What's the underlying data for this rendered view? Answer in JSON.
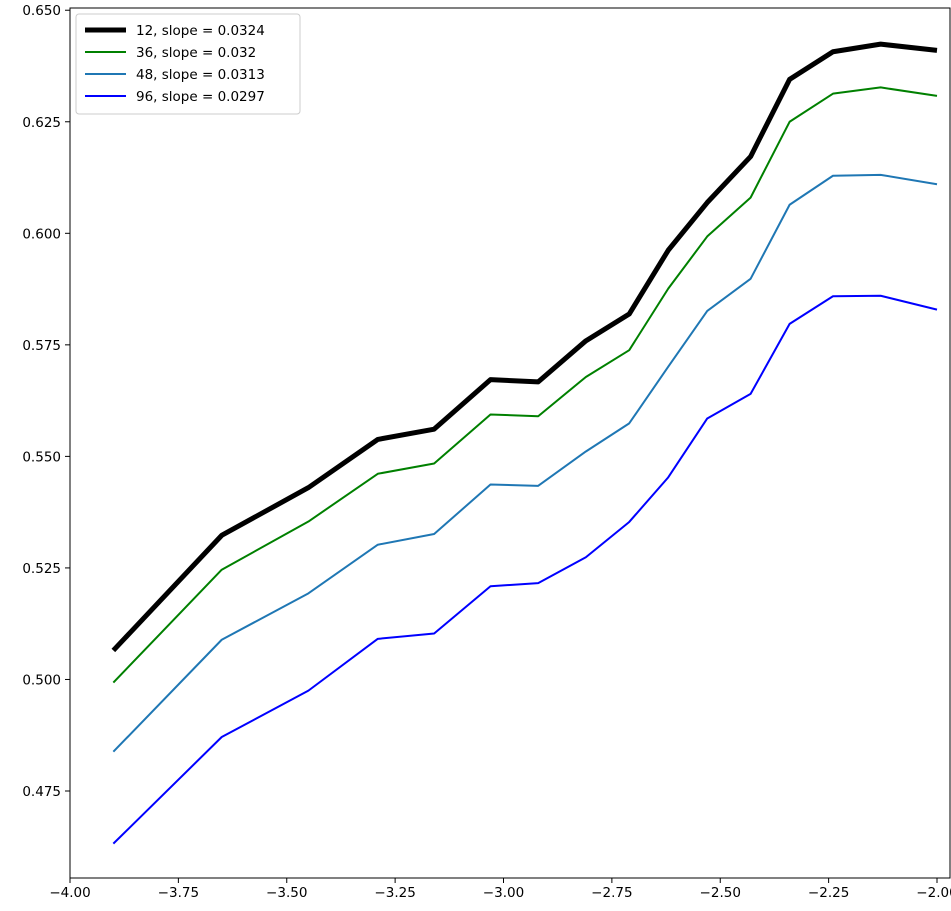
{
  "chart_data": {
    "type": "line",
    "title": "",
    "xlabel": "",
    "ylabel": "",
    "xlim": [
      -4.0,
      -1.97
    ],
    "ylim": [
      0.4555,
      0.6505
    ],
    "grid": false,
    "legend_position": "top-left",
    "x_ticks": [
      -4.0,
      -3.75,
      -3.5,
      -3.25,
      -3.0,
      -2.75,
      -2.5,
      -2.25,
      -2.0
    ],
    "x_tick_labels": [
      "−4.00",
      "−3.75",
      "−3.50",
      "−3.25",
      "−3.00",
      "−2.75",
      "−2.50",
      "−2.25",
      "−2.00"
    ],
    "y_ticks": [
      0.475,
      0.5,
      0.525,
      0.55,
      0.575,
      0.6,
      0.625,
      0.65
    ],
    "y_tick_labels": [
      "0.475",
      "0.500",
      "0.525",
      "0.550",
      "0.575",
      "0.600",
      "0.625",
      "0.650"
    ],
    "x": [
      -3.9,
      -3.65,
      -3.45,
      -3.29,
      -3.16,
      -3.03,
      -2.92,
      -2.81,
      -2.71,
      -2.62,
      -2.53,
      -2.43,
      -2.34,
      -2.24,
      -2.13,
      -2.0
    ],
    "series": [
      {
        "name": "12, slope = 0.0324",
        "color": "#000000",
        "width": 5,
        "values": [
          0.5065,
          0.5323,
          0.543,
          0.5538,
          0.5561,
          0.5672,
          0.5667,
          0.5759,
          0.5819,
          0.5962,
          0.6069,
          0.6172,
          0.6345,
          0.6407,
          0.6424,
          0.641
        ]
      },
      {
        "name": "36, slope = 0.032",
        "color": "#008000",
        "width": 2,
        "values": [
          0.4993,
          0.5246,
          0.5354,
          0.5461,
          0.5484,
          0.5594,
          0.559,
          0.5678,
          0.5738,
          0.5876,
          0.5993,
          0.608,
          0.625,
          0.6313,
          0.6327,
          0.6308
        ]
      },
      {
        "name": "48, slope = 0.0313",
        "color": "#1f77b4",
        "width": 2,
        "values": [
          0.4838,
          0.5089,
          0.5193,
          0.5302,
          0.5326,
          0.5437,
          0.5434,
          0.5511,
          0.5574,
          0.5701,
          0.5826,
          0.5898,
          0.6064,
          0.6129,
          0.6131,
          0.611
        ]
      },
      {
        "name": "96, slope = 0.0297",
        "color": "#0000ff",
        "width": 2,
        "values": [
          0.4632,
          0.4871,
          0.4975,
          0.5091,
          0.5103,
          0.5209,
          0.5216,
          0.5274,
          0.5353,
          0.5453,
          0.5585,
          0.564,
          0.5797,
          0.5859,
          0.586,
          0.5829
        ]
      }
    ]
  }
}
